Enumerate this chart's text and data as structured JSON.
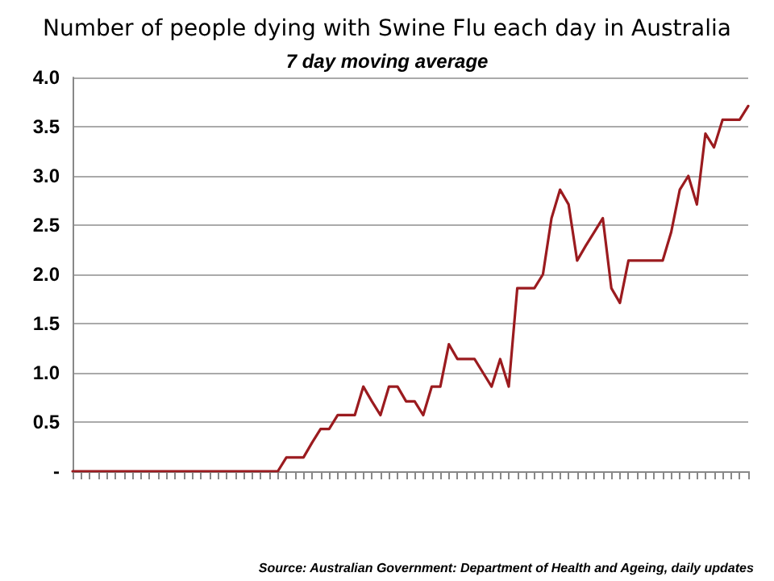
{
  "chart_data": {
    "type": "line",
    "title": "Number of people dying with Swine Flu each day in Australia",
    "subtitle": "7 day moving average",
    "categories": [
      null,
      null,
      null,
      null,
      null,
      null,
      null,
      null,
      null,
      null,
      null,
      null,
      null,
      null,
      null,
      null,
      null,
      null,
      null,
      null,
      null,
      null,
      null,
      null,
      null,
      null,
      null,
      null,
      null,
      null,
      null,
      null,
      null,
      null,
      null,
      null,
      null,
      null,
      null,
      null,
      null,
      null,
      null,
      null,
      null,
      null,
      null,
      null,
      null,
      null,
      null,
      null,
      null,
      null,
      null,
      null,
      null,
      null,
      null,
      null,
      null,
      null,
      null,
      null,
      null,
      null,
      null,
      null,
      null,
      null,
      null,
      null,
      null,
      null,
      null,
      null,
      null,
      null,
      null,
      null
    ],
    "series": [
      {
        "color": "#9b1b1f",
        "values": [
          0,
          0,
          0,
          0,
          0,
          0,
          0,
          0,
          0,
          0,
          0,
          0,
          0,
          0,
          0,
          0,
          0,
          0,
          0,
          0,
          0,
          0,
          0,
          0,
          0,
          0.14,
          0.14,
          0.14,
          0.29,
          0.43,
          0.43,
          0.57,
          0.57,
          0.57,
          0.86,
          0.71,
          0.57,
          0.86,
          0.86,
          0.71,
          0.71,
          0.57,
          0.86,
          0.86,
          1.29,
          1.14,
          1.14,
          1.14,
          1.0,
          0.86,
          1.14,
          0.86,
          1.86,
          1.86,
          1.86,
          2.0,
          2.57,
          2.86,
          2.71,
          2.14,
          2.29,
          2.43,
          2.57,
          1.86,
          1.71,
          2.14,
          2.14,
          2.14,
          2.14,
          2.14,
          2.43,
          2.86,
          3.0,
          2.71,
          3.43,
          3.29,
          3.57,
          3.57,
          3.57,
          3.71
        ]
      }
    ],
    "ylim": [
      0,
      4
    ],
    "yticks": [
      {
        "value": 0,
        "label": "-"
      },
      {
        "value": 0.5,
        "label": "0.5"
      },
      {
        "value": 1,
        "label": "1.0"
      },
      {
        "value": 1.5,
        "label": "1.5"
      },
      {
        "value": 2,
        "label": "2.0"
      },
      {
        "value": 2.5,
        "label": "2.5"
      },
      {
        "value": 3,
        "label": "3.0"
      },
      {
        "value": 3.5,
        "label": "3.5"
      },
      {
        "value": 4,
        "label": "4.0"
      }
    ],
    "grid": "y",
    "marker": "none",
    "line_style": "solid",
    "annotations": [
      "Source: Australian Government: Department of Health and Ageing, daily updates"
    ]
  }
}
